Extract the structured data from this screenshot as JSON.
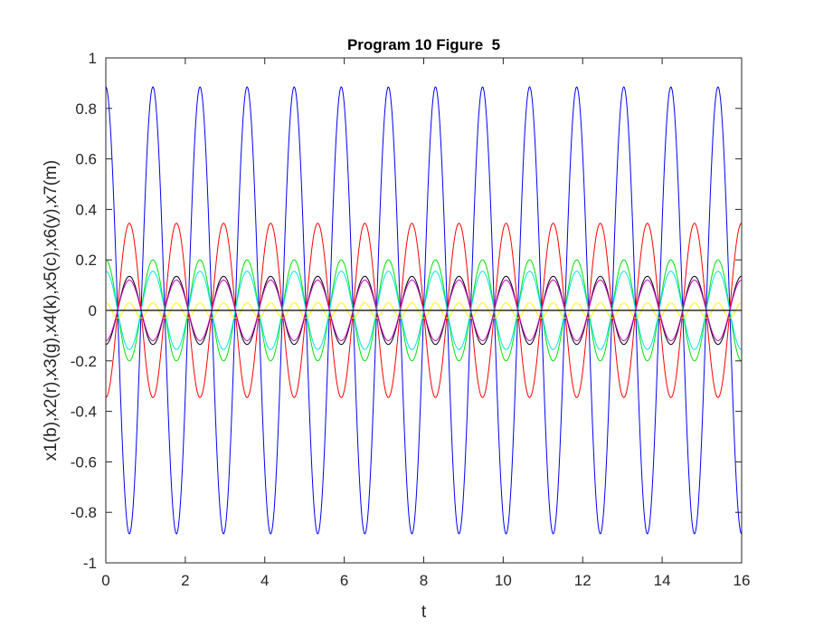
{
  "chart_data": {
    "type": "line",
    "title": "Program 10 Figure  5",
    "xlabel": "t",
    "ylabel": "x1(b),x2(r),x3(g),x4(k),x5(c),x6(y),x7(m)",
    "xlim": [
      0,
      16
    ],
    "ylim": [
      -1,
      1
    ],
    "xticks": [
      0,
      2,
      4,
      6,
      8,
      10,
      12,
      14,
      16
    ],
    "xtick_labels": [
      "0",
      "2",
      "4",
      "6",
      "8",
      "10",
      "12",
      "14",
      "16"
    ],
    "yticks": [
      -1,
      -0.8,
      -0.6,
      -0.4,
      -0.2,
      0,
      0.2,
      0.4,
      0.6,
      0.8,
      1
    ],
    "ytick_labels": [
      "-1",
      "-0.8",
      "-0.6",
      "-0.4",
      "-0.2",
      "0",
      "0.2",
      "0.4",
      "0.6",
      "0.8",
      "1"
    ],
    "grid": false,
    "legend": "none",
    "period": 1.185,
    "series": [
      {
        "name": "x1(b)",
        "color": "#0000ff",
        "amplitude": 0.885,
        "phase": "cos",
        "waveform": "fundamental"
      },
      {
        "name": "x2(r)",
        "color": "#ff0000",
        "amplitude": 0.345,
        "phase": "-cos",
        "waveform": "fundamental"
      },
      {
        "name": "x3(g)",
        "color": "#00e000",
        "amplitude": 0.2,
        "phase": "cos",
        "waveform": "fundamental"
      },
      {
        "name": "x4(k)",
        "color": "#000000",
        "amplitude": 0.135,
        "phase": "-cos",
        "waveform": "fundamental"
      },
      {
        "name": "x5(c)",
        "color": "#00e5e5",
        "amplitude": 0.155,
        "phase": "cos",
        "waveform": "fundamental"
      },
      {
        "name": "x6(y)",
        "color": "#ffff00",
        "amplitude": 0.03,
        "phase": "cos",
        "waveform": "double-frequency"
      },
      {
        "name": "x7(m)",
        "color": "#cc00cc",
        "amplitude": 0.12,
        "phase": "-cos",
        "waveform": "fundamental"
      }
    ]
  }
}
